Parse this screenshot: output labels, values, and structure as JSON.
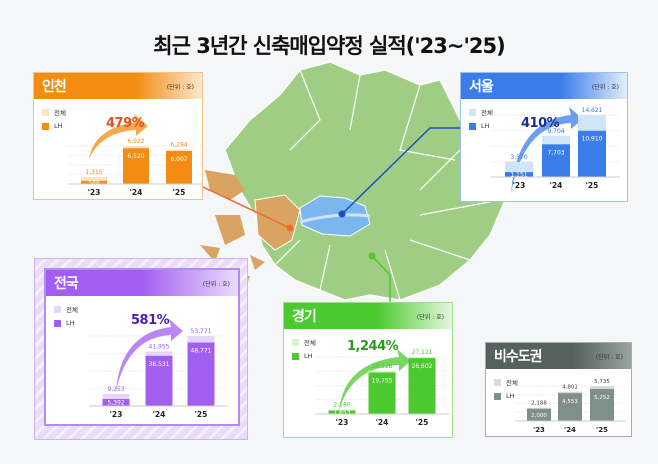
{
  "title": "최근 3년간 신축매입약정 실적('23~'25)",
  "legend": {
    "total": "전체",
    "lh": "LH"
  },
  "unit": "(단위 : 호)",
  "chart_data": [
    {
      "id": "incheon",
      "type": "bar",
      "title": "인천",
      "unit": "(단위 : 호)",
      "categories": [
        "'23",
        "'24",
        "'25"
      ],
      "series": [
        {
          "name": "전체",
          "values": [
            1315,
            6922,
            6294
          ]
        },
        {
          "name": "LH",
          "values": [
            588,
            6520,
            6007
          ]
        }
      ],
      "labels_total": [
        "1,315",
        "6,922",
        "6,294"
      ],
      "labels_lh": [
        "588",
        "6,520",
        "6,007"
      ],
      "growth": "479%",
      "color": "#f28c13",
      "light": "#fbe3c4"
    },
    {
      "id": "seoul",
      "type": "bar",
      "title": "서울",
      "unit": "(단위 : 호)",
      "categories": [
        "'23",
        "'24",
        "'25"
      ],
      "series": [
        {
          "name": "전체",
          "values": [
            3570,
            9704,
            14621
          ]
        },
        {
          "name": "LH",
          "values": [
            1151,
            7703,
            10910
          ]
        }
      ],
      "labels_total": [
        "3,570",
        "9,704",
        "14,621"
      ],
      "labels_lh": [
        "1,151",
        "7,703",
        "10,910"
      ],
      "growth": "410%",
      "color": "#3a7de8",
      "light": "#cfe6f8"
    },
    {
      "id": "national",
      "type": "bar",
      "title": "전국",
      "unit": "(단위 : 호)",
      "categories": [
        "'23",
        "'24",
        "'25"
      ],
      "series": [
        {
          "name": "전체",
          "values": [
            9253,
            41955,
            53771
          ]
        },
        {
          "name": "LH",
          "values": [
            5392,
            38531,
            48771
          ]
        }
      ],
      "labels_total": [
        "9,253",
        "41,955",
        "53,771"
      ],
      "labels_lh": [
        "5,392",
        "38,531",
        "48,771"
      ],
      "growth": "581%",
      "color": "#a25ef0",
      "light": "#e6d6fb"
    },
    {
      "id": "gyeonggi",
      "type": "bar",
      "title": "경기",
      "unit": "(단위 : 호)",
      "categories": [
        "'23",
        "'24",
        "'25"
      ],
      "series": [
        {
          "name": "전체",
          "values": [
            2180,
            20528,
            27121
          ]
        },
        {
          "name": "LH",
          "values": [
            1653,
            19755,
            26602
          ]
        }
      ],
      "labels_total": [
        "2,180",
        "20,528",
        "27,121"
      ],
      "labels_lh": [
        "1,653",
        "19,755",
        "26,602"
      ],
      "growth": "1,244%",
      "color": "#4cc92e",
      "light": "#d8f5cf"
    },
    {
      "id": "noncapital",
      "type": "bar",
      "title": "비수도권",
      "unit": "(단위 : 호)",
      "categories": [
        "'23",
        "'24",
        "'25"
      ],
      "series": [
        {
          "name": "전체",
          "values": [
            2188,
            4801,
            5735
          ]
        },
        {
          "name": "LH",
          "values": [
            2000,
            4553,
            5252
          ]
        }
      ],
      "labels_total": [
        "2,188",
        "4,801",
        "5,735"
      ],
      "labels_lh": [
        "2,000",
        "4,553",
        "5,252"
      ],
      "growth": "",
      "color": "#7f8f8a",
      "light": "#d7dcda"
    }
  ]
}
